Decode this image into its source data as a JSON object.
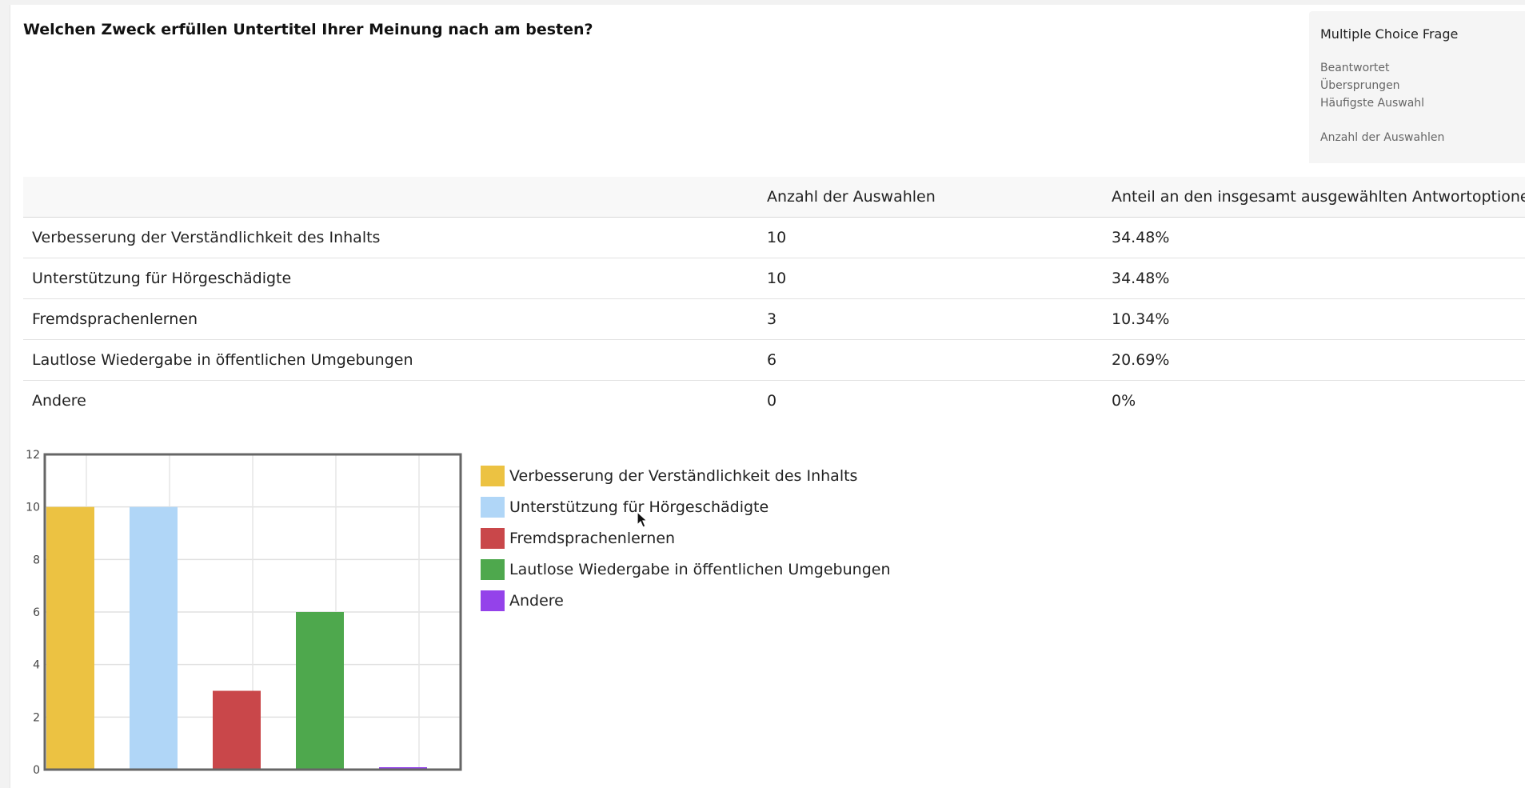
{
  "question": {
    "title": "Welchen Zweck erfüllen Untertitel Ihrer Meinung nach am besten?"
  },
  "info_box": {
    "type": "Multiple Choice Frage",
    "answered_label": "Beantwortet",
    "skipped_label": "Übersprungen",
    "most_common_label": "Häufigste Auswahl",
    "selections_label": "Anzahl der Auswahlen"
  },
  "table": {
    "headers": [
      "",
      "Anzahl der Auswahlen",
      "Anteil an den insgesamt ausgewählten Antwortoptionen"
    ],
    "rows": [
      {
        "label": "Verbesserung der Verständlichkeit des Inhalts",
        "count": "10",
        "share": "34.48%"
      },
      {
        "label": "Unterstützung für Hörgeschädigte",
        "count": "10",
        "share": "34.48%"
      },
      {
        "label": "Fremdsprachenlernen",
        "count": "3",
        "share": "10.34%"
      },
      {
        "label": "Lautlose Wiedergabe in öffentlichen Umgebungen",
        "count": "6",
        "share": "20.69%"
      },
      {
        "label": "Andere",
        "count": "0",
        "share": "0%"
      }
    ]
  },
  "chart_data": {
    "type": "bar",
    "categories": [
      "Verbesserung der Verständlichkeit des Inhalts",
      "Unterstützung für Hörgeschädigte",
      "Fremdsprachenlernen",
      "Lautlose Wiedergabe in öffentlichen Umgebungen",
      "Andere"
    ],
    "values": [
      10,
      10,
      3,
      6,
      0
    ],
    "colors": [
      "#ecc242",
      "#b0d6f7",
      "#c9474a",
      "#4ea84d",
      "#9442ea"
    ],
    "ylim": [
      0,
      12
    ],
    "yticks": [
      "0",
      "2",
      "4",
      "6",
      "8",
      "10",
      "12"
    ],
    "grid": true,
    "legend_position": "right"
  }
}
